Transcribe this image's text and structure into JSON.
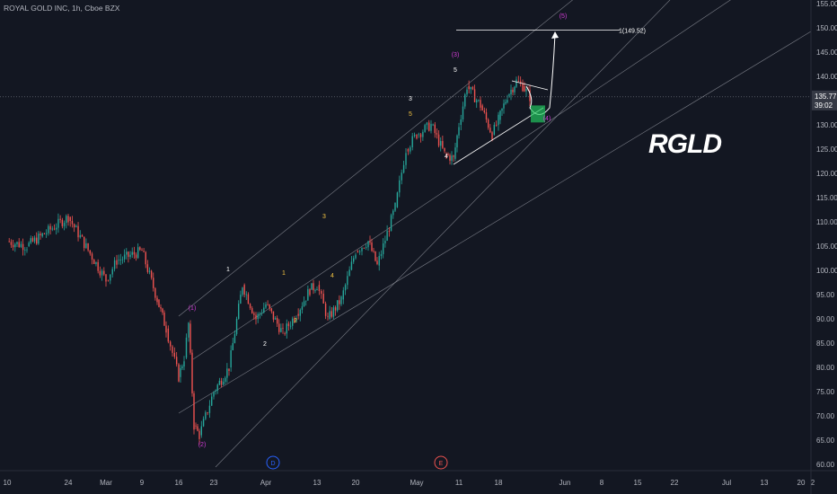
{
  "header": {
    "title": "ROYAL GOLD INC, 1h, Cboe BZX"
  },
  "watermark": "RGLD",
  "price_tag": {
    "price": "135.77",
    "countdown": "39:02"
  },
  "target_label": "1(149.52)",
  "colors": {
    "background": "#131722",
    "axis_text": "#b2b5be",
    "up": "#26a69a",
    "down": "#ef5350",
    "wave_magenta": "#d23cd6",
    "wave_white": "#ffffff",
    "wave_yellow": "#f5c542",
    "circle_blue": "#2962ff",
    "circle_red": "#ef5350",
    "target_box": "#22c55e"
  },
  "chart_data": {
    "type": "candlestick",
    "title": "ROYAL GOLD INC, 1h, Cboe BZX",
    "ylim": [
      59,
      155
    ],
    "y_ticks": [
      "155.00",
      "150.00",
      "145.00",
      "140.00",
      "135.00",
      "130.00",
      "125.00",
      "120.00",
      "115.00",
      "110.00",
      "105.00",
      "100.00",
      "95.00",
      "90.00",
      "85.00",
      "80.00",
      "75.00",
      "70.00",
      "65.00",
      "60.00"
    ],
    "x_ticks": [
      "10",
      "24",
      "Mar",
      "9",
      "16",
      "23",
      "Apr",
      "13",
      "20",
      "May",
      "11",
      "18",
      "Jun",
      "8",
      "15",
      "22",
      "Jul",
      "13",
      "20",
      "2"
    ],
    "last_price": 135.77,
    "price_path": [
      [
        "10",
        106
      ],
      [
        "17",
        105
      ],
      [
        "20",
        107
      ],
      [
        "24",
        111
      ],
      [
        "Mar",
        98
      ],
      [
        "4",
        102
      ],
      [
        "9",
        104
      ],
      [
        "12",
        94
      ],
      [
        "14",
        88
      ],
      [
        "16",
        78
      ],
      [
        "17",
        82
      ],
      [
        "18",
        89
      ],
      [
        "19",
        68
      ],
      [
        "20",
        66
      ],
      [
        "21",
        75
      ],
      [
        "23",
        80
      ],
      [
        "25",
        97
      ],
      [
        "27",
        90
      ],
      [
        "29",
        93
      ],
      [
        "Apr",
        87
      ],
      [
        "3",
        91
      ],
      [
        "5",
        96
      ],
      [
        "7",
        97
      ],
      [
        "9",
        90
      ],
      [
        "11",
        94
      ],
      [
        "13",
        104
      ],
      [
        "15",
        106
      ],
      [
        "17",
        101
      ],
      [
        "19",
        113
      ],
      [
        "21",
        125
      ],
      [
        "23",
        128
      ],
      [
        "27",
        130
      ],
      [
        "29",
        124
      ],
      [
        "May",
        123
      ],
      [
        "3",
        130
      ],
      [
        "5",
        138
      ],
      [
        "7",
        134
      ],
      [
        "9",
        128
      ],
      [
        "11",
        131
      ],
      [
        "13",
        136
      ],
      [
        "15",
        139
      ],
      [
        "17",
        138
      ],
      [
        "19",
        135.77
      ]
    ],
    "wave_labels": [
      {
        "text": "(1)",
        "x": "18",
        "y": 91,
        "color": "magenta"
      },
      {
        "text": "(2)",
        "x": "20",
        "y": 65,
        "color": "magenta"
      },
      {
        "text": "1",
        "x": "25",
        "y": 99,
        "color": "white"
      },
      {
        "text": "2",
        "x": "Apr",
        "y": 85,
        "color": "white"
      },
      {
        "text": "1",
        "x": "5",
        "y": 98,
        "color": "yellow"
      },
      {
        "text": "2",
        "x": "7",
        "y": 88,
        "color": "yellow"
      },
      {
        "text": "3",
        "x": "17",
        "y": 112,
        "color": "yellow"
      },
      {
        "text": "4",
        "x": "19",
        "y": 99,
        "color": "yellow"
      },
      {
        "text": "3",
        "x": "27",
        "y": 134,
        "color": "white"
      },
      {
        "text": "5",
        "x": "27",
        "y": 131,
        "color": "yellow"
      },
      {
        "text": "4",
        "x": "May",
        "y": 123,
        "color": "white"
      },
      {
        "text": "(3)",
        "x": "5",
        "y": 144,
        "color": "magenta"
      },
      {
        "text": "5",
        "x": "5",
        "y": 141,
        "color": "white"
      },
      {
        "text": "(4)",
        "x": "21",
        "y": 130,
        "color": "magenta"
      },
      {
        "text": "(5)",
        "x": "23",
        "y": 153,
        "color": "magenta"
      }
    ],
    "circle_labels": [
      {
        "text": "D",
        "color": "blue"
      },
      {
        "text": "E",
        "color": "red"
      }
    ],
    "target": 149.52
  }
}
